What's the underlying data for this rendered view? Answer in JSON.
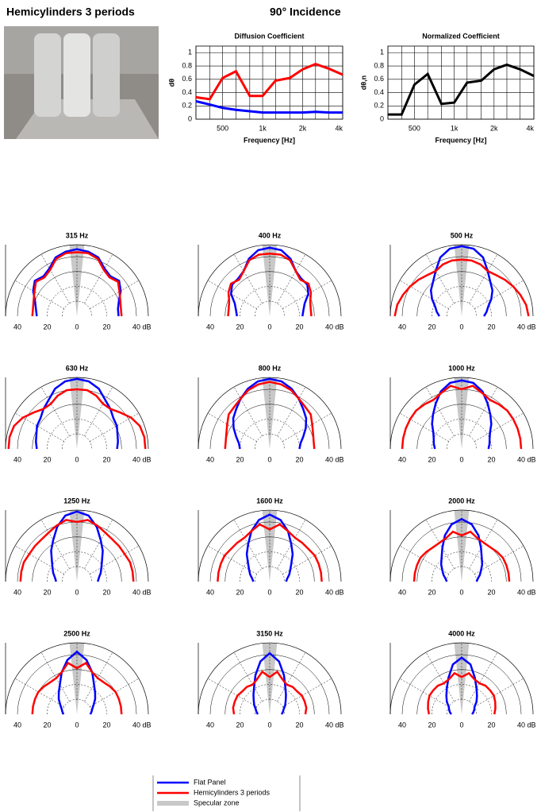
{
  "header": {
    "title": "Hemicylinders 3 periods",
    "incidence": "90° Incidence"
  },
  "chart_data": [
    {
      "type": "line",
      "title": "Diffusion Coefficient",
      "ylabel": "dθ",
      "xlabel": "Frequency [Hz]",
      "x": [
        315,
        400,
        500,
        630,
        800,
        1000,
        1250,
        1600,
        2000,
        2500,
        3150,
        4000
      ],
      "xscale": "log",
      "xlim": [
        315,
        4000
      ],
      "xticks": [
        500,
        {
          "value": 1000,
          "label": "1k"
        },
        {
          "value": 2000,
          "label": "2k"
        },
        {
          "value": 4000,
          "label": "4k"
        }
      ],
      "ylim": [
        0,
        1.1
      ],
      "yticks": [
        0,
        0.2,
        0.4,
        0.6,
        0.8,
        1
      ],
      "grid": true,
      "series": [
        {
          "name": "Flat Panel",
          "color": "#0000ff",
          "values": [
            0.27,
            0.22,
            0.17,
            0.14,
            0.12,
            0.1,
            0.1,
            0.1,
            0.1,
            0.11,
            0.1,
            0.1
          ]
        },
        {
          "name": "Hemicylinders 3 periods",
          "color": "#ff0000",
          "values": [
            0.33,
            0.3,
            0.62,
            0.72,
            0.35,
            0.35,
            0.58,
            0.62,
            0.75,
            0.83,
            0.76,
            0.67
          ]
        }
      ]
    },
    {
      "type": "line",
      "title": "Normalized Coefficient",
      "ylabel": "dθ,n",
      "xlabel": "Frequency [Hz]",
      "x": [
        315,
        400,
        500,
        630,
        800,
        1000,
        1250,
        1600,
        2000,
        2500,
        3150,
        4000
      ],
      "xscale": "log",
      "xlim": [
        315,
        4000
      ],
      "xticks": [
        500,
        {
          "value": 1000,
          "label": "1k"
        },
        {
          "value": 2000,
          "label": "2k"
        },
        {
          "value": 4000,
          "label": "4k"
        }
      ],
      "ylim": [
        0,
        1.1
      ],
      "yticks": [
        0,
        0.2,
        0.4,
        0.6,
        0.8,
        1
      ],
      "grid": true,
      "series": [
        {
          "color": "#000000",
          "values": [
            0.07,
            0.07,
            0.52,
            0.68,
            0.23,
            0.25,
            0.55,
            0.58,
            0.75,
            0.82,
            0.75,
            0.65
          ]
        }
      ]
    },
    {
      "type": "polar",
      "title": "315 Hz",
      "series": [
        {
          "color": "#0000ff",
          "values": [
            27,
            28,
            30,
            34,
            37,
            35,
            37,
            42,
            44,
            45,
            44,
            42,
            37,
            35,
            37,
            34,
            30,
            28,
            28
          ]
        },
        {
          "color": "#ff0000",
          "values": [
            30,
            30,
            31,
            33,
            36,
            34,
            36,
            41,
            43,
            43,
            43,
            41,
            36,
            34,
            36,
            33,
            31,
            30,
            30
          ]
        }
      ]
    },
    {
      "type": "polar",
      "title": "400 Hz",
      "series": [
        {
          "color": "#0000ff",
          "values": [
            22,
            23,
            25,
            30,
            33,
            33,
            35,
            41,
            45,
            46,
            45,
            41,
            35,
            33,
            33,
            30,
            25,
            23,
            22
          ]
        },
        {
          "color": "#ff0000",
          "values": [
            28,
            28,
            29,
            32,
            34,
            32,
            35,
            40,
            42,
            42,
            42,
            40,
            35,
            32,
            34,
            32,
            29,
            28,
            28
          ]
        }
      ]
    },
    {
      "type": "polar",
      "title": "500 Hz",
      "series": [
        {
          "color": "#0000ff",
          "values": [
            15,
            17,
            19,
            23,
            27,
            30,
            35,
            42,
            46,
            47,
            46,
            42,
            35,
            30,
            27,
            23,
            19,
            17,
            15
          ]
        },
        {
          "color": "#ff0000",
          "values": [
            45,
            44,
            42,
            40,
            38,
            36,
            35,
            37,
            38,
            38,
            38,
            37,
            35,
            36,
            38,
            40,
            42,
            44,
            45
          ]
        }
      ]
    },
    {
      "type": "polar",
      "title": "630 Hz",
      "series": [
        {
          "color": "#0000ff",
          "values": [
            27,
            28,
            29,
            31,
            32,
            35,
            38,
            43,
            46,
            47,
            46,
            43,
            38,
            35,
            32,
            31,
            29,
            28,
            27
          ]
        },
        {
          "color": "#ff0000",
          "values": [
            46,
            46,
            45,
            42,
            38,
            35,
            35,
            38,
            40,
            40,
            40,
            38,
            35,
            35,
            38,
            42,
            45,
            46,
            46
          ]
        }
      ]
    },
    {
      "type": "polar",
      "title": "800 Hz",
      "series": [
        {
          "color": "#0000ff",
          "values": [
            20,
            21,
            24,
            28,
            32,
            35,
            39,
            43,
            46,
            47,
            46,
            43,
            39,
            35,
            32,
            28,
            24,
            21,
            20
          ]
        },
        {
          "color": "#ff0000",
          "values": [
            30,
            30,
            31,
            33,
            36,
            37,
            39,
            42,
            44,
            45,
            44,
            42,
            39,
            37,
            36,
            33,
            31,
            30,
            30
          ]
        }
      ]
    },
    {
      "type": "polar",
      "title": "1000 Hz",
      "series": [
        {
          "color": "#0000ff",
          "values": [
            18,
            19,
            20,
            22,
            26,
            30,
            35,
            41,
            45,
            46,
            45,
            41,
            35,
            30,
            26,
            22,
            20,
            19,
            18
          ]
        },
        {
          "color": "#ff0000",
          "values": [
            40,
            40,
            40,
            40,
            40,
            39,
            38,
            40,
            43,
            40,
            43,
            40,
            38,
            39,
            40,
            40,
            40,
            40,
            40
          ]
        }
      ]
    },
    {
      "type": "polar",
      "title": "1250 Hz",
      "series": [
        {
          "color": "#0000ff",
          "values": [
            14,
            15,
            17,
            19,
            22,
            27,
            32,
            39,
            45,
            47,
            45,
            39,
            32,
            27,
            22,
            19,
            17,
            15,
            14
          ]
        },
        {
          "color": "#ff0000",
          "values": [
            38,
            38,
            38,
            37,
            37,
            37,
            38,
            40,
            42,
            40,
            42,
            40,
            38,
            37,
            37,
            37,
            38,
            38,
            38
          ]
        }
      ]
    },
    {
      "type": "polar",
      "title": "1600 Hz",
      "series": [
        {
          "color": "#0000ff",
          "values": [
            11,
            12,
            14,
            16,
            19,
            24,
            29,
            36,
            42,
            45,
            42,
            36,
            29,
            24,
            19,
            16,
            14,
            12,
            11
          ]
        },
        {
          "color": "#ff0000",
          "values": [
            35,
            35,
            35,
            35,
            34,
            34,
            34,
            36,
            39,
            35,
            39,
            36,
            34,
            34,
            34,
            35,
            35,
            35,
            35
          ]
        }
      ]
    },
    {
      "type": "polar",
      "title": "2000 Hz",
      "series": [
        {
          "color": "#0000ff",
          "values": [
            10,
            11,
            13,
            15,
            18,
            21,
            26,
            33,
            39,
            42,
            39,
            33,
            26,
            21,
            18,
            15,
            13,
            11,
            10
          ]
        },
        {
          "color": "#ff0000",
          "values": [
            32,
            32,
            32,
            32,
            31,
            30,
            30,
            31,
            34,
            31,
            34,
            31,
            30,
            30,
            31,
            32,
            32,
            32,
            32
          ]
        }
      ]
    },
    {
      "type": "polar",
      "title": "2500 Hz",
      "series": [
        {
          "color": "#0000ff",
          "values": [
            9,
            10,
            11,
            13,
            16,
            19,
            23,
            30,
            37,
            42,
            37,
            30,
            23,
            19,
            16,
            13,
            11,
            10,
            9
          ]
        },
        {
          "color": "#ff0000",
          "values": [
            30,
            30,
            30,
            30,
            29,
            28,
            28,
            30,
            35,
            31,
            35,
            30,
            28,
            28,
            29,
            30,
            30,
            30,
            30
          ]
        }
      ]
    },
    {
      "type": "polar",
      "title": "3150 Hz",
      "series": [
        {
          "color": "#0000ff",
          "values": [
            8,
            9,
            10,
            12,
            14,
            17,
            21,
            28,
            36,
            41,
            36,
            28,
            21,
            17,
            14,
            12,
            10,
            9,
            8
          ]
        },
        {
          "color": "#ff0000",
          "values": [
            24,
            25,
            25,
            25,
            24,
            24,
            23,
            25,
            29,
            25,
            29,
            25,
            23,
            24,
            24,
            25,
            25,
            25,
            24
          ]
        }
      ]
    },
    {
      "type": "polar",
      "title": "4000 Hz",
      "series": [
        {
          "color": "#0000ff",
          "values": [
            7,
            8,
            9,
            10,
            13,
            16,
            20,
            26,
            34,
            38,
            34,
            26,
            20,
            16,
            13,
            10,
            9,
            8,
            7
          ]
        },
        {
          "color": "#ff0000",
          "values": [
            22,
            23,
            24,
            25,
            25,
            25,
            24,
            25,
            28,
            25,
            28,
            25,
            24,
            25,
            25,
            25,
            24,
            23,
            22
          ]
        }
      ]
    }
  ],
  "polar_axes": {
    "angles": [
      -90,
      -80,
      -70,
      -60,
      -50,
      -40,
      -30,
      -20,
      -10,
      0,
      10,
      20,
      30,
      40,
      50,
      60,
      70,
      80,
      90
    ],
    "rlim": [
      0,
      48
    ],
    "rgrid": [
      10,
      20,
      30,
      40
    ],
    "rticks": [
      {
        "value": -40,
        "label": "40"
      },
      {
        "value": -20,
        "label": "20"
      },
      0,
      {
        "value": 20,
        "label": "20"
      },
      {
        "value": 40,
        "label": "40"
      }
    ],
    "unit": "dB"
  },
  "specular_zone": {
    "name": "Specular zone",
    "color": "#c8c8c8",
    "angles": [
      -6,
      6
    ]
  }
}
